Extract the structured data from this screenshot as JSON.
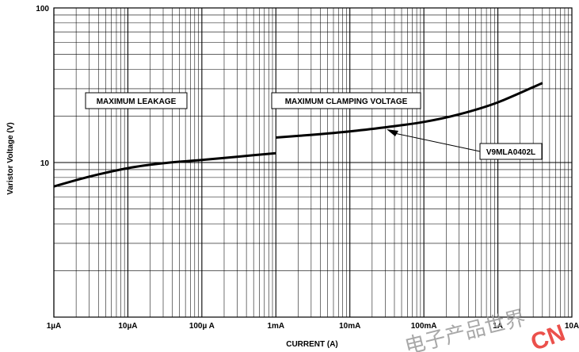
{
  "chart_data": {
    "type": "line",
    "title": "",
    "xlabel": "CURRENT (A)",
    "ylabel": "Varistor Voltage (V)",
    "xscale": "log",
    "yscale": "log",
    "xlim": [
      1e-06,
      10
    ],
    "ylim": [
      1,
      100
    ],
    "grid": true,
    "x_tick_labels": [
      "1µA",
      "10µA",
      "100µ A",
      "1mA",
      "10mA",
      "100mA",
      "1A",
      "10A"
    ],
    "x_tick_values": [
      1e-06,
      1e-05,
      0.0001,
      0.001,
      0.01,
      0.1,
      1,
      10
    ],
    "y_tick_labels": [
      "10",
      "100"
    ],
    "y_tick_values": [
      10,
      100
    ],
    "series": [
      {
        "name": "MAXIMUM LEAKAGE",
        "x": [
          1e-06,
          3e-06,
          1e-05,
          3e-05,
          0.0001,
          0.0003,
          0.001
        ],
        "y": [
          7.0,
          8.1,
          9.2,
          9.9,
          10.4,
          10.9,
          11.5
        ]
      },
      {
        "name": "MAXIMUM CLAMPING VOLTAGE",
        "x": [
          0.001,
          0.003,
          0.01,
          0.03,
          0.1,
          0.3,
          1,
          4
        ],
        "y": [
          14.5,
          15.1,
          15.9,
          16.9,
          18.3,
          20.5,
          24.5,
          32.7
        ]
      }
    ],
    "annotations": [
      {
        "text": "MAXIMUM LEAKAGE"
      },
      {
        "text": "MAXIMUM CLAMPING VOLTAGE"
      },
      {
        "text": "V9MLA0402L"
      }
    ]
  },
  "watermark": {
    "cjk": "电子产品世界",
    "latin": "CN"
  },
  "colors": {
    "line": "#000000",
    "grid": "#000000",
    "watermark_red": "#e8322c",
    "watermark_gray": "#9a9a9a"
  }
}
